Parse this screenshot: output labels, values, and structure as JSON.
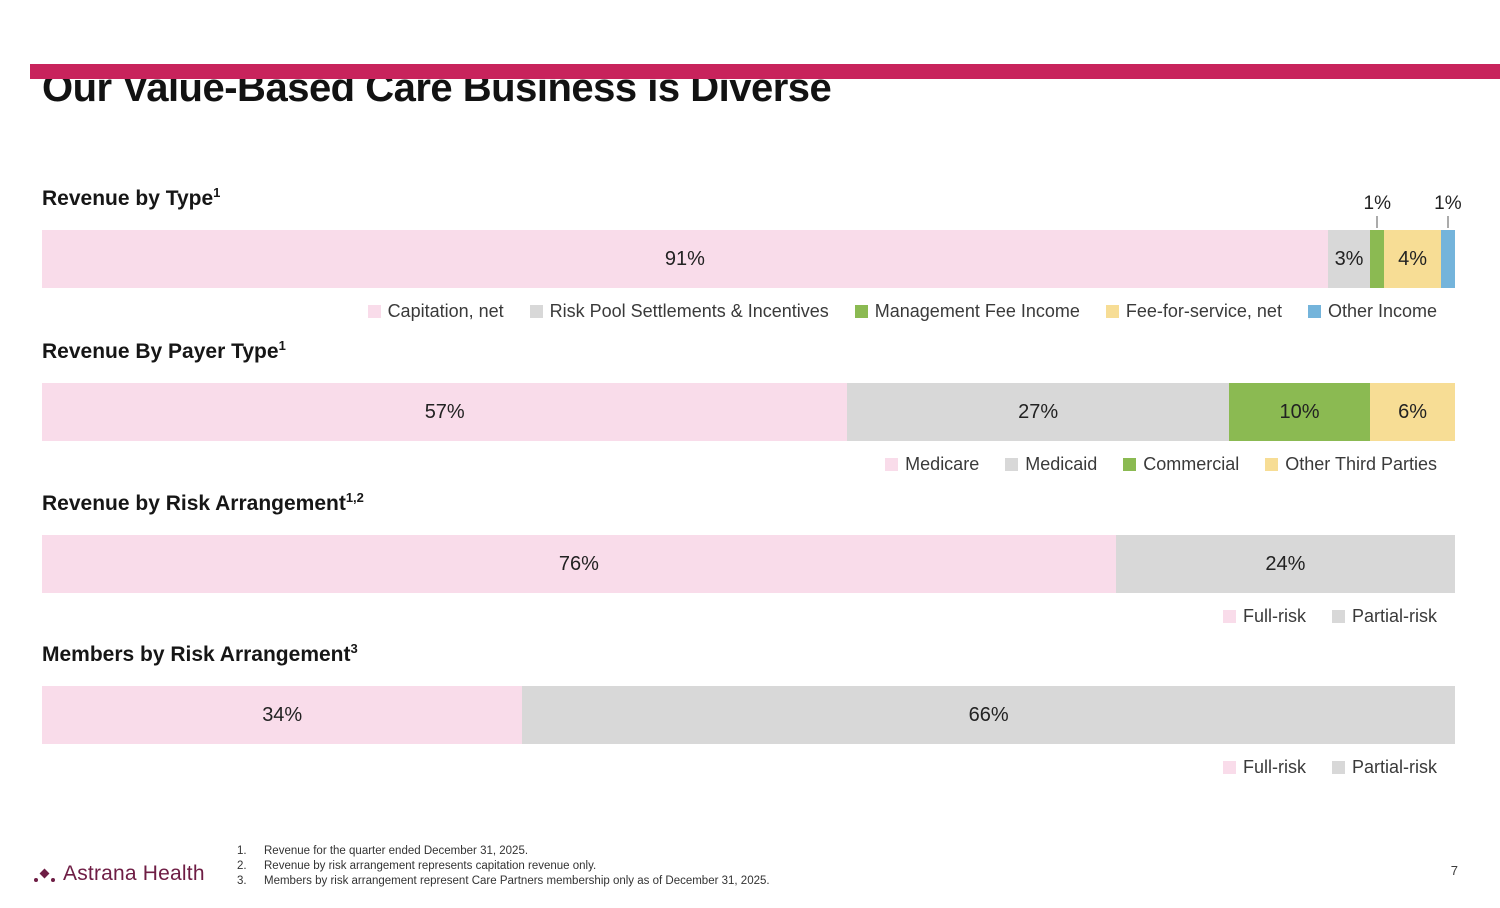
{
  "slide": {
    "title": "Our Value-Based Care Business is Diverse",
    "page_number": "7",
    "accent_color": "#C8235C",
    "logo_text": "Astrana Health",
    "footnotes": [
      {
        "num": "1.",
        "text": "Revenue for the quarter ended December 31, 2025."
      },
      {
        "num": "2.",
        "text": "Revenue by risk arrangement represents capitation revenue only."
      },
      {
        "num": "3.",
        "text": "Members by risk arrangement represent Care Partners membership only as of December 31, 2025."
      }
    ]
  },
  "palette": {
    "pink": "#F9DCEA",
    "gray": "#D8D8D8",
    "green": "#8BBA52",
    "yellow": "#F7DD95",
    "blue": "#74B4DB"
  },
  "chart_data": [
    {
      "type": "bar",
      "subtype": "stacked-horizontal-100pct",
      "title": "Revenue by Type",
      "title_superscript": "1",
      "unit": "%",
      "legend_position": "bottom-right",
      "series": [
        {
          "name": "Capitation, net",
          "value": 91,
          "label": "91%",
          "color_key": "pink",
          "label_position": "inside"
        },
        {
          "name": "Risk Pool Settlements & Incentives",
          "value": 3,
          "label": "3%",
          "color_key": "gray",
          "label_position": "inside"
        },
        {
          "name": "Management Fee Income",
          "value": 1,
          "label": "1%",
          "color_key": "green",
          "label_position": "above"
        },
        {
          "name": "Fee-for-service, net",
          "value": 4,
          "label": "4%",
          "color_key": "yellow",
          "label_position": "inside"
        },
        {
          "name": "Other Income",
          "value": 1,
          "label": "1%",
          "color_key": "blue",
          "label_position": "above"
        }
      ]
    },
    {
      "type": "bar",
      "subtype": "stacked-horizontal-100pct",
      "title": "Revenue By Payer Type",
      "title_superscript": "1",
      "unit": "%",
      "legend_position": "bottom-right",
      "series": [
        {
          "name": "Medicare",
          "value": 57,
          "label": "57%",
          "color_key": "pink",
          "label_position": "inside"
        },
        {
          "name": "Medicaid",
          "value": 27,
          "label": "27%",
          "color_key": "gray",
          "label_position": "inside"
        },
        {
          "name": "Commercial",
          "value": 10,
          "label": "10%",
          "color_key": "green",
          "label_position": "inside"
        },
        {
          "name": "Other Third Parties",
          "value": 6,
          "label": "6%",
          "color_key": "yellow",
          "label_position": "inside"
        }
      ]
    },
    {
      "type": "bar",
      "subtype": "stacked-horizontal-100pct",
      "title": "Revenue by Risk Arrangement",
      "title_superscript": "1,2",
      "unit": "%",
      "legend_position": "bottom-right",
      "series": [
        {
          "name": "Full-risk",
          "value": 76,
          "label": "76%",
          "color_key": "pink",
          "label_position": "inside"
        },
        {
          "name": "Partial-risk",
          "value": 24,
          "label": "24%",
          "color_key": "gray",
          "label_position": "inside"
        }
      ]
    },
    {
      "type": "bar",
      "subtype": "stacked-horizontal-100pct",
      "title": "Members by Risk Arrangement",
      "title_superscript": "3",
      "unit": "%",
      "legend_position": "bottom-right",
      "series": [
        {
          "name": "Full-risk",
          "value": 34,
          "label": "34%",
          "color_key": "pink",
          "label_position": "inside"
        },
        {
          "name": "Partial-risk",
          "value": 66,
          "label": "66%",
          "color_key": "gray",
          "label_position": "inside"
        }
      ]
    }
  ]
}
